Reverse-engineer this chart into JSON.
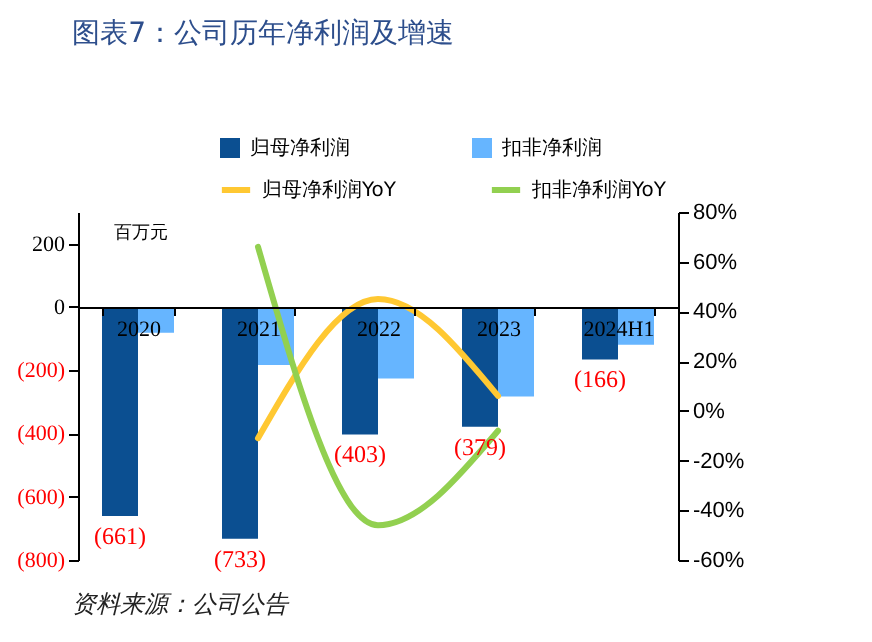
{
  "chart_data": {
    "type": "bar",
    "title": "图表7：公司历年净利润及增速",
    "categories": [
      "2020",
      "2021",
      "2022",
      "2023",
      "2024H1"
    ],
    "series": [
      {
        "name": "归母净利润",
        "color": "#0b4f91",
        "values": [
          -661,
          -733,
          -403,
          -379,
          -166
        ],
        "value_labels": [
          "(661)",
          "(733)",
          "(403)",
          "(379)",
          "(166)"
        ]
      },
      {
        "name": "扣非净利润",
        "color": "#66b5ff",
        "values": [
          -82,
          -184,
          -226,
          -283,
          -120
        ]
      },
      {
        "name": "归母净利润YoY",
        "type": "line",
        "axis": "y2",
        "color": "#ffc832",
        "values": [
          null,
          -11,
          45,
          6,
          null
        ]
      },
      {
        "name": "扣非净利润YoY",
        "type": "line",
        "axis": "y2",
        "color": "#92d050",
        "values": [
          null,
          66,
          -46,
          -8,
          null
        ]
      }
    ],
    "ylim": [
      -800,
      300
    ],
    "yticks": [
      {
        "value": -800,
        "label": "(800)"
      },
      {
        "value": -600,
        "label": "(600)"
      },
      {
        "value": -400,
        "label": "(400)"
      },
      {
        "value": -200,
        "label": "(200)"
      },
      0,
      200
    ],
    "y2lim": [
      -60,
      80
    ],
    "y2ticks": [
      {
        "value": -60,
        "label": "-60%"
      },
      {
        "value": -40,
        "label": "-40%"
      },
      {
        "value": -20,
        "label": "-20%"
      },
      {
        "value": 0,
        "label": "0%"
      },
      {
        "value": 20,
        "label": "20%"
      },
      {
        "value": 40,
        "label": "40%"
      },
      {
        "value": 60,
        "label": "60%"
      },
      {
        "value": 80,
        "label": "80%"
      }
    ],
    "grid": false,
    "legend": "top",
    "line_style": "solid",
    "marker": "none",
    "annotations": [
      "百万元",
      "资料来源：公司公告"
    ]
  }
}
